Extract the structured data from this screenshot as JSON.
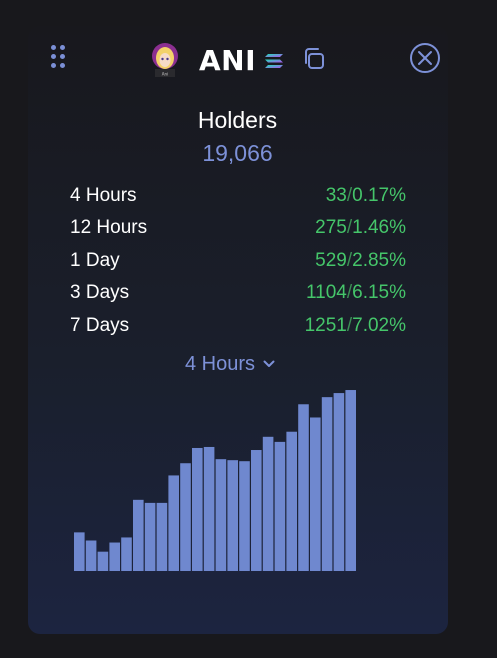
{
  "header": {
    "token_symbol": "ANI",
    "avatar_caption": "Ani",
    "icons": {
      "drag": "drag-handle-icon",
      "avatar": "token-avatar",
      "chain": "solana-icon",
      "copy": "copy-icon",
      "close": "close-icon"
    }
  },
  "holders": {
    "label": "Holders",
    "count": "19,066"
  },
  "stats": [
    {
      "period": "4 Hours",
      "change": "33",
      "percent": "0.17%"
    },
    {
      "period": "12 Hours",
      "change": "275",
      "percent": "1.46%"
    },
    {
      "period": "1 Day",
      "change": "529",
      "percent": "2.85%"
    },
    {
      "period": "3 Days",
      "change": "1104",
      "percent": "6.15%"
    },
    {
      "period": "7 Days",
      "change": "1251",
      "percent": "7.02%"
    }
  ],
  "period_select": {
    "selected": "4 Hours"
  },
  "colors": {
    "accent": "#7d91d8",
    "positive": "#45c66a",
    "bar": "#6f88cf",
    "background": "#18181c"
  },
  "chart_data": {
    "type": "bar",
    "values": [
      38,
      30,
      19,
      28,
      33,
      70,
      67,
      67,
      94,
      106,
      121,
      122,
      110,
      109,
      108,
      119,
      132,
      127,
      137,
      164,
      151,
      171,
      175,
      178
    ],
    "ylim": [
      0,
      180
    ]
  }
}
